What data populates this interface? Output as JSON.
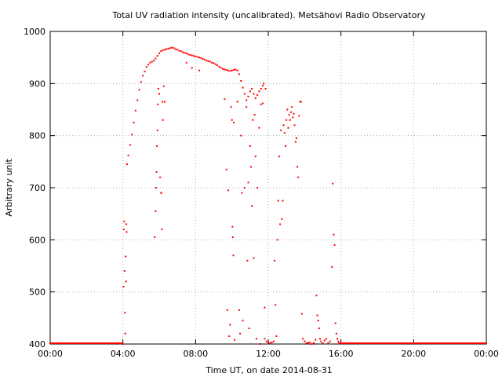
{
  "chart_data": {
    "type": "scatter",
    "title": "Total UV radiation intensity (uncalibrated). Metsähovi Radio Observatory",
    "xlabel": "Time UT, on date 2014-08-31",
    "ylabel": "Arbitrary unit",
    "xlim": [
      "00:00",
      "24:00"
    ],
    "ylim": [
      400,
      1000
    ],
    "x_ticks": [
      "00:00",
      "04:00",
      "08:00",
      "12:00",
      "16:00",
      "20:00",
      "00:00"
    ],
    "y_ticks": [
      "400",
      "500",
      "600",
      "700",
      "800",
      "900",
      "1000"
    ],
    "grid": true,
    "marker_color": "#ff0000",
    "series": [
      {
        "x_unit": "hours UT",
        "points": [
          [
            4.0,
            400
          ],
          [
            4.03,
            510
          ],
          [
            4.05,
            620
          ],
          [
            4.07,
            635
          ],
          [
            4.09,
            540
          ],
          [
            4.11,
            460
          ],
          [
            4.13,
            420
          ],
          [
            4.15,
            568
          ],
          [
            4.17,
            520
          ],
          [
            4.19,
            630
          ],
          [
            4.21,
            615
          ],
          [
            4.23,
            745
          ],
          [
            4.3,
            762
          ],
          [
            4.4,
            782
          ],
          [
            4.5,
            802
          ],
          [
            4.6,
            825
          ],
          [
            4.7,
            848
          ],
          [
            4.8,
            868
          ],
          [
            4.9,
            888
          ],
          [
            5.0,
            903
          ],
          [
            5.1,
            915
          ],
          [
            5.2,
            923
          ],
          [
            5.3,
            932
          ],
          [
            5.4,
            936
          ],
          [
            5.5,
            940
          ],
          [
            5.6,
            942
          ],
          [
            5.7,
            944
          ],
          [
            5.8,
            948
          ],
          [
            5.9,
            953
          ],
          [
            6.0,
            958
          ],
          [
            6.1,
            962
          ],
          [
            6.2,
            964
          ],
          [
            6.3,
            965
          ],
          [
            6.4,
            966
          ],
          [
            6.5,
            967
          ],
          [
            6.6,
            968
          ],
          [
            6.7,
            969
          ],
          [
            6.8,
            968
          ],
          [
            6.9,
            966
          ],
          [
            7.0,
            965
          ],
          [
            7.1,
            963
          ],
          [
            7.2,
            962
          ],
          [
            7.3,
            960
          ],
          [
            7.4,
            959
          ],
          [
            7.5,
            958
          ],
          [
            7.6,
            956
          ],
          [
            7.7,
            955
          ],
          [
            7.8,
            954
          ],
          [
            7.9,
            953
          ],
          [
            8.0,
            952
          ],
          [
            8.1,
            951
          ],
          [
            8.2,
            950
          ],
          [
            8.3,
            949
          ],
          [
            8.4,
            947
          ],
          [
            8.5,
            946
          ],
          [
            8.6,
            944
          ],
          [
            8.7,
            943
          ],
          [
            8.8,
            942
          ],
          [
            8.9,
            940
          ],
          [
            9.0,
            939
          ],
          [
            9.1,
            937
          ],
          [
            9.2,
            935
          ],
          [
            9.3,
            932
          ],
          [
            9.4,
            930
          ],
          [
            9.5,
            928
          ],
          [
            9.6,
            927
          ],
          [
            9.7,
            926
          ],
          [
            9.8,
            925
          ],
          [
            9.9,
            924
          ],
          [
            10.0,
            925
          ],
          [
            10.1,
            926
          ],
          [
            10.2,
            927
          ],
          [
            10.3,
            925
          ],
          [
            10.4,
            918
          ],
          [
            10.5,
            905
          ],
          [
            10.6,
            892
          ],
          [
            10.7,
            880
          ],
          [
            10.8,
            868
          ],
          [
            10.9,
            875
          ],
          [
            11.0,
            885
          ],
          [
            11.1,
            890
          ],
          [
            11.2,
            880
          ],
          [
            11.3,
            872
          ],
          [
            11.4,
            878
          ],
          [
            11.5,
            885
          ],
          [
            11.6,
            890
          ],
          [
            11.7,
            896
          ],
          [
            11.75,
            900
          ],
          [
            5.75,
            605
          ],
          [
            5.8,
            655
          ],
          [
            5.82,
            700
          ],
          [
            5.85,
            730
          ],
          [
            5.87,
            780
          ],
          [
            5.9,
            810
          ],
          [
            5.92,
            860
          ],
          [
            5.95,
            890
          ],
          [
            6.0,
            880
          ],
          [
            6.05,
            720
          ],
          [
            6.1,
            690
          ],
          [
            6.12,
            690
          ],
          [
            6.15,
            620
          ],
          [
            6.18,
            865
          ],
          [
            6.2,
            830
          ],
          [
            6.25,
            895
          ],
          [
            6.3,
            865
          ],
          [
            7.5,
            940
          ],
          [
            7.8,
            930
          ],
          [
            8.2,
            925
          ],
          [
            9.6,
            870
          ],
          [
            9.7,
            735
          ],
          [
            9.75,
            465
          ],
          [
            9.8,
            695
          ],
          [
            9.85,
            415
          ],
          [
            9.9,
            437
          ],
          [
            9.95,
            855
          ],
          [
            10.0,
            830
          ],
          [
            10.03,
            625
          ],
          [
            10.05,
            605
          ],
          [
            10.08,
            570
          ],
          [
            10.1,
            825
          ],
          [
            10.15,
            408
          ],
          [
            10.3,
            865
          ],
          [
            10.4,
            465
          ],
          [
            10.45,
            420
          ],
          [
            10.5,
            800
          ],
          [
            10.55,
            690
          ],
          [
            10.6,
            445
          ],
          [
            10.7,
            700
          ],
          [
            10.8,
            855
          ],
          [
            10.85,
            560
          ],
          [
            10.9,
            710
          ],
          [
            10.95,
            430
          ],
          [
            11.0,
            780
          ],
          [
            11.05,
            740
          ],
          [
            11.1,
            665
          ],
          [
            11.15,
            830
          ],
          [
            11.2,
            565
          ],
          [
            11.25,
            840
          ],
          [
            11.3,
            760
          ],
          [
            11.35,
            410
          ],
          [
            11.4,
            700
          ],
          [
            11.5,
            815
          ],
          [
            11.55,
            400
          ],
          [
            11.6,
            860
          ],
          [
            11.7,
            862
          ],
          [
            11.8,
            470
          ],
          [
            11.85,
            890
          ],
          [
            11.8,
            410
          ],
          [
            11.9,
            405
          ],
          [
            12.0,
            403
          ],
          [
            12.1,
            402
          ],
          [
            12.2,
            403
          ],
          [
            12.3,
            405
          ],
          [
            12.35,
            560
          ],
          [
            12.4,
            475
          ],
          [
            12.45,
            415
          ],
          [
            12.5,
            600
          ],
          [
            12.55,
            675
          ],
          [
            12.6,
            760
          ],
          [
            12.65,
            630
          ],
          [
            12.7,
            810
          ],
          [
            12.75,
            640
          ],
          [
            12.8,
            675
          ],
          [
            12.85,
            820
          ],
          [
            12.9,
            805
          ],
          [
            12.95,
            780
          ],
          [
            13.0,
            830
          ],
          [
            13.05,
            850
          ],
          [
            13.1,
            815
          ],
          [
            13.15,
            840
          ],
          [
            13.2,
            830
          ],
          [
            13.25,
            845
          ],
          [
            13.3,
            855
          ],
          [
            13.35,
            835
          ],
          [
            13.4,
            842
          ],
          [
            13.45,
            820
          ],
          [
            13.5,
            788
          ],
          [
            13.55,
            795
          ],
          [
            13.6,
            740
          ],
          [
            13.65,
            720
          ],
          [
            13.7,
            838
          ],
          [
            13.75,
            865
          ],
          [
            13.8,
            865
          ],
          [
            13.85,
            458
          ],
          [
            13.9,
            410
          ],
          [
            14.0,
            405
          ],
          [
            14.1,
            402
          ],
          [
            14.2,
            402
          ],
          [
            14.3,
            403
          ],
          [
            14.4,
            400
          ],
          [
            14.5,
            402
          ],
          [
            14.6,
            408
          ],
          [
            14.65,
            493
          ],
          [
            14.7,
            455
          ],
          [
            14.75,
            445
          ],
          [
            14.8,
            430
          ],
          [
            14.85,
            410
          ],
          [
            14.9,
            405
          ],
          [
            15.0,
            402
          ],
          [
            15.1,
            407
          ],
          [
            15.2,
            410
          ],
          [
            15.3,
            402
          ],
          [
            15.4,
            405
          ],
          [
            15.5,
            548
          ],
          [
            15.55,
            708
          ],
          [
            15.6,
            610
          ],
          [
            15.65,
            590
          ],
          [
            15.7,
            440
          ],
          [
            15.75,
            420
          ],
          [
            15.8,
            410
          ],
          [
            15.85,
            405
          ],
          [
            15.9,
            402
          ]
        ],
        "baseline_segments": [
          [
            0.0,
            3.98,
            400
          ],
          [
            15.9,
            24.0,
            400
          ]
        ]
      }
    ]
  }
}
